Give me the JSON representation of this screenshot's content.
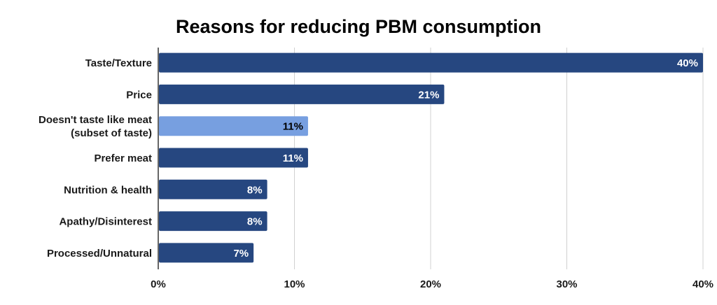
{
  "chart_data": {
    "type": "bar",
    "orientation": "horizontal",
    "title": "Reasons for reducing PBM consumption",
    "xlabel": "",
    "ylabel": "",
    "categories": [
      [
        "Taste/Texture"
      ],
      [
        "Price"
      ],
      [
        "Doesn't taste like meat",
        "(subset of taste)"
      ],
      [
        "Prefer meat"
      ],
      [
        "Nutrition & health"
      ],
      [
        "Apathy/Disinterest"
      ],
      [
        "Processed/Unnatural"
      ]
    ],
    "values": [
      40,
      21,
      11,
      11,
      8,
      8,
      7
    ],
    "data_labels": [
      "40%",
      "21%",
      "11%",
      "11%",
      "8%",
      "8%",
      "7%"
    ],
    "highlighted_index": 2,
    "xlim": [
      0,
      40
    ],
    "xticks": [
      0,
      10,
      20,
      30,
      40
    ],
    "xtick_labels": [
      "0%",
      "10%",
      "20%",
      "30%",
      "40%"
    ],
    "grid": true,
    "legend": "none",
    "colors": {
      "bar": "#264780",
      "highlight": "#779fe0",
      "grid": "#d0d0d0",
      "axis": "#333333"
    }
  }
}
